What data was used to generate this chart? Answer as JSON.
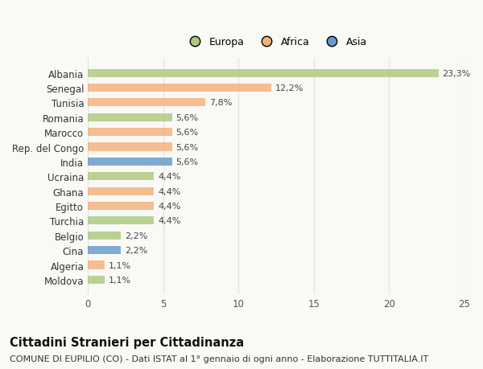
{
  "countries": [
    "Albania",
    "Senegal",
    "Tunisia",
    "Romania",
    "Marocco",
    "Rep. del Congo",
    "India",
    "Ucraina",
    "Ghana",
    "Egitto",
    "Turchia",
    "Belgio",
    "Cina",
    "Algeria",
    "Moldova"
  ],
  "values": [
    23.3,
    12.2,
    7.8,
    5.6,
    5.6,
    5.6,
    5.6,
    4.4,
    4.4,
    4.4,
    4.4,
    2.2,
    2.2,
    1.1,
    1.1
  ],
  "labels": [
    "23,3%",
    "12,2%",
    "7,8%",
    "5,6%",
    "5,6%",
    "5,6%",
    "5,6%",
    "4,4%",
    "4,4%",
    "4,4%",
    "4,4%",
    "2,2%",
    "2,2%",
    "1,1%",
    "1,1%"
  ],
  "continents": [
    "Europa",
    "Africa",
    "Africa",
    "Europa",
    "Africa",
    "Africa",
    "Asia",
    "Europa",
    "Africa",
    "Africa",
    "Europa",
    "Europa",
    "Asia",
    "Africa",
    "Europa"
  ],
  "colors": {
    "Europa": "#adc97e",
    "Africa": "#f5b07a",
    "Asia": "#6699cc"
  },
  "xlim": [
    0,
    25
  ],
  "xticks": [
    0,
    5,
    10,
    15,
    20,
    25
  ],
  "title": "Cittadini Stranieri per Cittadinanza",
  "subtitle": "COMUNE DI EUPILIO (CO) - Dati ISTAT al 1° gennaio di ogni anno - Elaborazione TUTTITALIA.IT",
  "background_color": "#f9f9f6",
  "grid_color": "#e0e0e0",
  "title_fontsize": 10.5,
  "subtitle_fontsize": 8,
  "label_fontsize": 8,
  "ytick_fontsize": 8.5,
  "xtick_fontsize": 8.5,
  "legend_fontsize": 9,
  "bar_height": 0.55,
  "bar_alpha": 0.82
}
